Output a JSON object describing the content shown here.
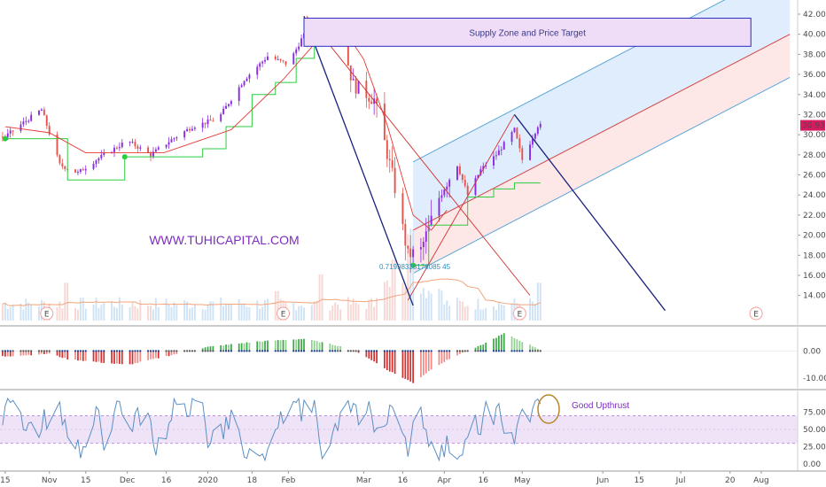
{
  "chart_data": [
    {
      "type": "candlestick",
      "panel": "price",
      "y_ticks": [
        "42.00",
        "40.00",
        "38.00",
        "36.00",
        "34.00",
        "32.00",
        "30.00",
        "28.00",
        "26.00",
        "24.00",
        "22.00",
        "20.00",
        "18.00",
        "16.00",
        "14.00"
      ],
      "ylim": [
        12.5,
        42.8
      ],
      "last_price_label": "30.93",
      "last_price": 30.93,
      "annotations": {
        "supply_zone": "Supply Zone and Price Target",
        "watermark": "WWW.TUHICAPITAL.COM",
        "fib_label": "0.71998338176085 45",
        "earnings_marker": "E"
      },
      "earnings_marker_dates": [
        "2019-10-31",
        "2020-01-30",
        "2020-04-30",
        "2020-07-30"
      ],
      "price_path": [
        [
          "2019-10-15",
          29.8
        ],
        [
          "2019-10-22",
          31.2
        ],
        [
          "2019-10-29",
          32.5
        ],
        [
          "2019-11-05",
          27.0
        ],
        [
          "2019-11-12",
          26.2
        ],
        [
          "2019-11-19",
          27.5
        ],
        [
          "2019-12-01",
          29.4
        ],
        [
          "2019-12-10",
          28.0
        ],
        [
          "2019-12-18",
          29.5
        ],
        [
          "2019-12-26",
          30.8
        ],
        [
          "2020-01-05",
          31.6
        ],
        [
          "2020-01-15",
          35.5
        ],
        [
          "2020-01-24",
          37.8
        ],
        [
          "2020-02-01",
          37.0
        ],
        [
          "2020-02-06",
          39.5
        ],
        [
          "2020-02-10",
          41.0
        ],
        [
          "2020-02-20",
          40.8
        ],
        [
          "2020-02-26",
          35.0
        ],
        [
          "2020-03-05",
          33.5
        ],
        [
          "2020-03-12",
          26.0
        ],
        [
          "2020-03-18",
          18.0
        ],
        [
          "2020-03-23",
          18.5
        ],
        [
          "2020-03-31",
          24.5
        ],
        [
          "2020-04-06",
          27.0
        ],
        [
          "2020-04-10",
          24.0
        ],
        [
          "2020-04-15",
          26.5
        ],
        [
          "2020-04-21",
          28.0
        ],
        [
          "2020-04-28",
          30.5
        ],
        [
          "2020-05-01",
          27.5
        ],
        [
          "2020-05-07",
          30.9
        ]
      ],
      "trailing_stop": [
        [
          "2019-10-15",
          29.6
        ],
        [
          "2019-11-01",
          29.6
        ],
        [
          "2019-11-08",
          25.5
        ],
        [
          "2019-11-30",
          27.8
        ],
        [
          "2019-12-18",
          27.8
        ],
        [
          "2019-12-30",
          28.6
        ],
        [
          "2020-01-08",
          30.8
        ],
        [
          "2020-01-18",
          34.0
        ],
        [
          "2020-01-27",
          35.2
        ],
        [
          "2020-02-04",
          37.6
        ],
        [
          "2020-02-11",
          39.2
        ],
        [
          "2020-02-21",
          39.2
        ],
        [
          "2020-03-20",
          17.0
        ],
        [
          "2020-03-26",
          21.0
        ],
        [
          "2020-04-10",
          23.8
        ],
        [
          "2020-04-20",
          24.6
        ],
        [
          "2020-04-28",
          25.2
        ],
        [
          "2020-05-08",
          25.2
        ]
      ],
      "ema_line": [
        [
          "2019-10-15",
          30.8
        ],
        [
          "2019-11-01",
          30.2
        ],
        [
          "2019-11-15",
          28.2
        ],
        [
          "2019-12-15",
          28.2
        ],
        [
          "2020-01-10",
          30.5
        ],
        [
          "2020-01-30",
          35.5
        ],
        [
          "2020-02-15",
          40.2
        ],
        [
          "2020-02-22",
          40.6
        ],
        [
          "2020-03-01",
          37.5
        ],
        [
          "2020-03-10",
          31.0
        ],
        [
          "2020-03-20",
          22.0
        ],
        [
          "2020-03-27",
          20.5
        ],
        [
          "2020-04-02",
          22.5
        ]
      ],
      "regression_channel": {
        "start": [
          "2020-03-20",
          20.5
        ],
        "end": [
          "2020-08-12",
          40.0
        ],
        "upper_offset": 6.8,
        "lower_offset": 4.3
      },
      "trendlines": [
        {
          "from": [
            "2020-02-08",
            41.8
          ],
          "to": [
            "2020-05-04",
            14.0
          ],
          "color": "#d32f2f"
        },
        {
          "from": [
            "2020-03-18",
            13.5
          ],
          "to": [
            "2020-04-28",
            32.0
          ],
          "color": "#d32f2f"
        },
        {
          "from": [
            "2020-04-28",
            32.0
          ],
          "to": [
            "2020-06-25",
            12.5
          ],
          "color": "#1a237e"
        },
        {
          "from": [
            "2020-02-07",
            41.8
          ],
          "to": [
            "2020-03-20",
            13.0
          ],
          "color": "#1a237e"
        }
      ],
      "volume_spikes": [
        {
          "x": "2019-11-08",
          "v": 0.45
        },
        {
          "x": "2020-01-27",
          "v": 0.35
        },
        {
          "x": "2020-02-14",
          "v": 0.55
        },
        {
          "x": "2020-03-13",
          "v": 0.6
        },
        {
          "x": "2020-03-19",
          "v": 0.9
        },
        {
          "x": "2020-05-08",
          "v": 0.45
        }
      ],
      "volume_ma_color": "#f3a37a"
    },
    {
      "type": "histogram",
      "panel": "momentum",
      "y_ticks": [
        "0.00",
        "-10.00"
      ],
      "ylim": [
        -13,
        8
      ],
      "series_points": [
        [
          "2019-10-15",
          -2.0
        ],
        [
          "2019-11-01",
          -1.0
        ],
        [
          "2019-11-08",
          -3.0
        ],
        [
          "2019-12-01",
          -5.2
        ],
        [
          "2019-12-18",
          -1.5
        ],
        [
          "2020-01-01",
          1.5
        ],
        [
          "2020-01-20",
          3.5
        ],
        [
          "2020-02-07",
          4.5
        ],
        [
          "2020-02-20",
          2.0
        ],
        [
          "2020-03-01",
          -1.5
        ],
        [
          "2020-03-10",
          -7.0
        ],
        [
          "2020-03-20",
          -11.8
        ],
        [
          "2020-03-28",
          -6.0
        ],
        [
          "2020-04-06",
          -1.5
        ],
        [
          "2020-04-15",
          2.0
        ],
        [
          "2020-04-24",
          6.5
        ],
        [
          "2020-05-01",
          3.5
        ],
        [
          "2020-05-08",
          0.5
        ]
      ]
    },
    {
      "type": "line",
      "panel": "oscillator",
      "y_ticks": [
        "75.00",
        "50.00",
        "25.00",
        "0.00"
      ],
      "ylim": [
        -5,
        100
      ],
      "band": [
        30,
        70
      ],
      "annotation": "Good Upthrust",
      "x_labels": [
        "15",
        "Nov",
        "15",
        "Dec",
        "16",
        "2020",
        "18",
        "Feb",
        "Mar",
        "16",
        "Apr",
        "16",
        "May",
        "Jun",
        "15",
        "Jul",
        "20",
        "Aug"
      ],
      "x_label_dates": [
        "2019-10-15",
        "2019-11-01",
        "2019-11-15",
        "2019-12-01",
        "2019-12-16",
        "2020-01-01",
        "2020-01-18",
        "2020-02-01",
        "2020-03-01",
        "2020-03-16",
        "2020-04-01",
        "2020-04-16",
        "2020-05-01",
        "2020-06-01",
        "2020-06-15",
        "2020-07-01",
        "2020-07-20",
        "2020-08-01"
      ]
    }
  ],
  "colors": {
    "bull": "#8a2be2",
    "bear": "#e5534b",
    "stop": "#2ecc40",
    "ema": "#e53935",
    "channel_blue": "#dbeafd",
    "channel_red": "#fde3e3",
    "channel_line_blue": "#5aa6d8",
    "channel_line_red": "#d64545",
    "hist_pos": "#4caf50",
    "hist_neg": "#e53935",
    "osc_line": "#5b8fc4",
    "osc_band": "#efe3f8",
    "zone_fill": "#efdcf7",
    "zone_border": "#2b2bbf",
    "last_price_bg": "#d81b60",
    "watermark": "#7b2cbf"
  }
}
